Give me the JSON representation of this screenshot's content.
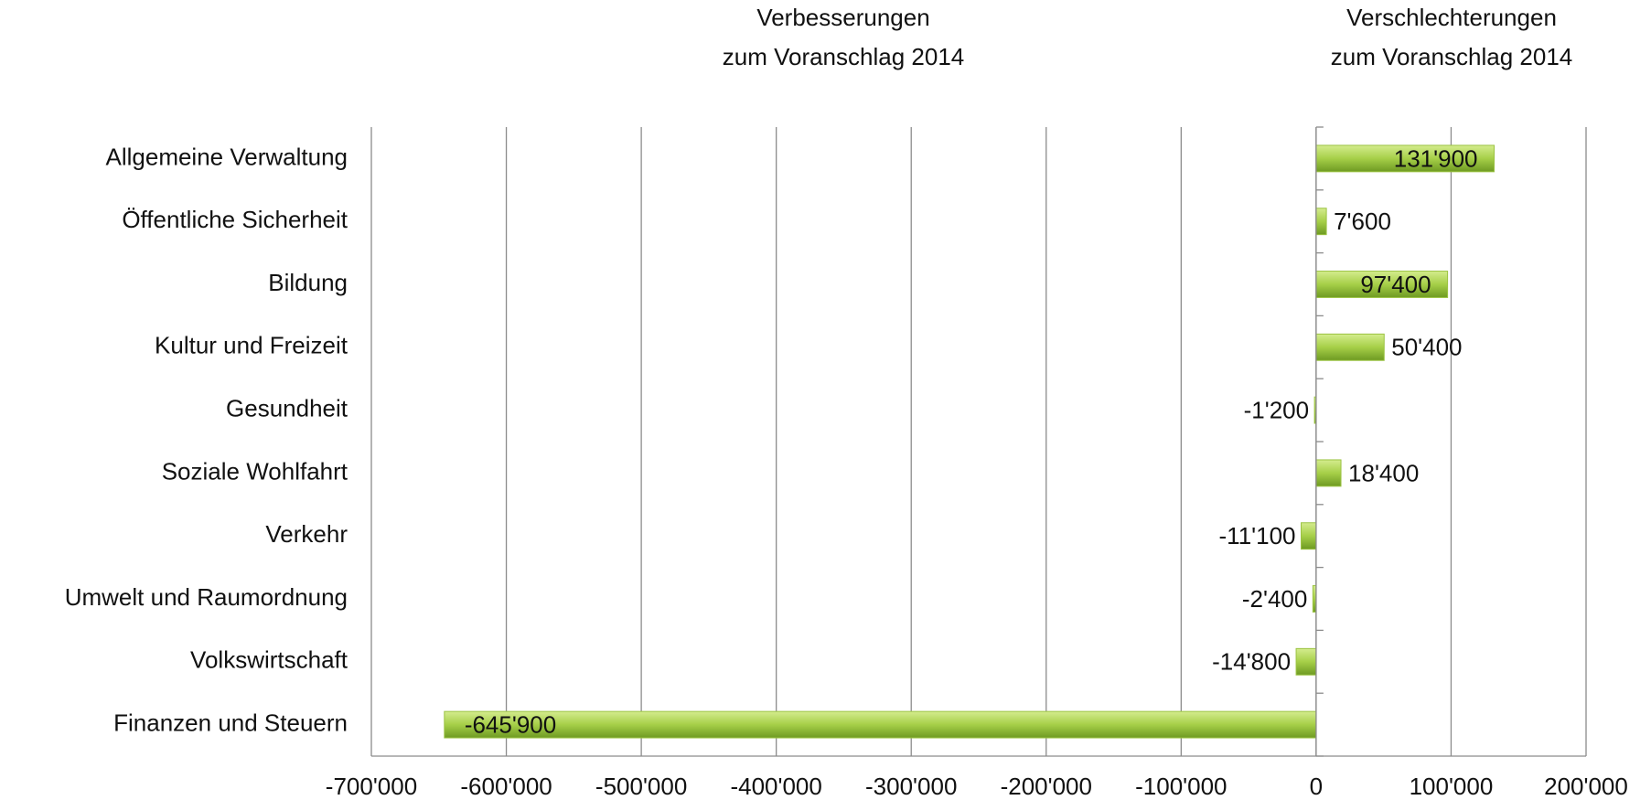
{
  "chart_data": {
    "type": "hbar",
    "annotations": [
      [
        "Verbesserungen",
        "zum Voranschlag 2014"
      ],
      [
        "Verschlechterungen",
        "zum Voranschlag 2014"
      ]
    ],
    "categories": [
      "Allgemeine Verwaltung",
      "Öffentliche Sicherheit",
      "Bildung",
      "Kultur und Freizeit",
      "Gesundheit",
      "Soziale Wohlfahrt",
      "Verkehr",
      "Umwelt und Raumordnung",
      "Volkswirtschaft",
      "Finanzen und Steuern"
    ],
    "values": [
      131900,
      7600,
      97400,
      50400,
      -1200,
      18400,
      -11100,
      -2400,
      -14800,
      -645900
    ],
    "value_labels": [
      "131'900",
      "7'600",
      "97'400",
      "50'400",
      "-1'200",
      "18'400",
      "-11'100",
      "-2'400",
      "-14'800",
      "-645'900"
    ],
    "color": "#9bc342",
    "xlim": [
      -700000,
      200000
    ],
    "xticks": [
      {
        "value": -700000,
        "label": "-700'000"
      },
      {
        "value": -600000,
        "label": "-600'000"
      },
      {
        "value": -500000,
        "label": "-500'000"
      },
      {
        "value": -400000,
        "label": "-400'000"
      },
      {
        "value": -300000,
        "label": "-300'000"
      },
      {
        "value": -200000,
        "label": "-200'000"
      },
      {
        "value": -100000,
        "label": "-100'000"
      },
      0,
      {
        "value": 100000,
        "label": "100'000"
      },
      {
        "value": 200000,
        "label": "200'000"
      }
    ],
    "grid": true
  }
}
